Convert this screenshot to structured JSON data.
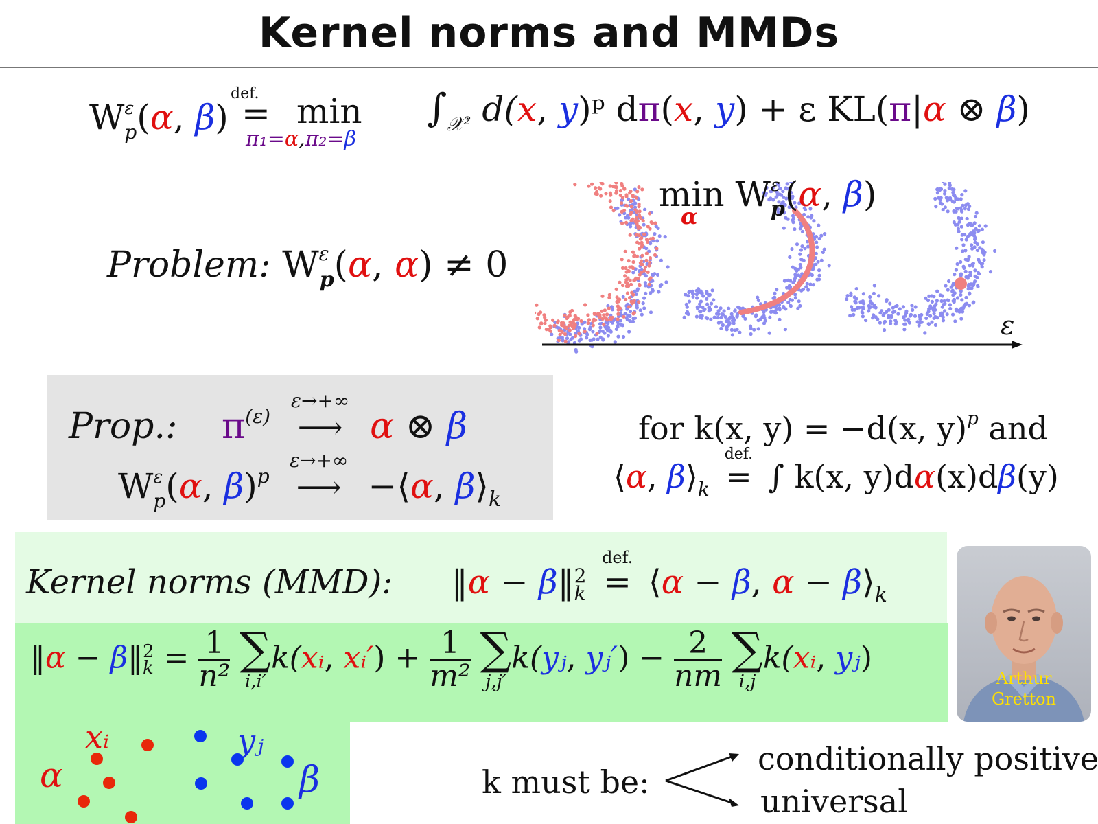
{
  "title": "Kernel norms and MMDs",
  "def_equation": {
    "lhs": "W",
    "lhs_sup": "ε",
    "lhs_sub": "p",
    "open": "(",
    "alpha": "α",
    "comma": ", ",
    "beta": "β",
    "close": ")",
    "def_label": "def.",
    "eq": "=",
    "min_label": "min",
    "constraint_pi1": "π₁=",
    "constraint_alpha": "α",
    "constraint_comma": ",",
    "constraint_pi2": "π₂=",
    "constraint_beta": "β",
    "integral": "∫",
    "integral_sub": "𝒳²",
    "integrand_d": "d(",
    "x": "x",
    "y": "y",
    "integrand_p": ")ᵖ d",
    "pi": "π",
    "plus_eps": " + ε KL(",
    "bar": "|",
    "otimes": " ⊗ "
  },
  "problem": {
    "label": "Problem:",
    "expr_W": "W",
    "expr_sup": "ε",
    "expr_sub": "p",
    "alpha1": "α",
    "alpha2": "α",
    "neq_zero": ") ≠ 0"
  },
  "figure": {
    "min_label": "min W",
    "min_sup": "ε",
    "min_sub": "p",
    "min_sub_alpha": "α",
    "alpha": "α",
    "beta": "β",
    "axis_label": "ε"
  },
  "prop": {
    "label": "Prop.:",
    "pi": "π",
    "pi_sup": "(ε)",
    "arrow_label": "ε→+∞",
    "arrow": "⟶",
    "alpha": "α",
    "otimes": " ⊗ ",
    "beta": "β",
    "line2_W": "W",
    "line2_sup": "ε",
    "line2_sub": "p",
    "line2_pow": "p",
    "neg_open": "−⟨",
    "close_k": "⟩",
    "k": "k"
  },
  "kernel_def": {
    "line1": "for k(x, y) = −d(x, y)",
    "line1_sup": "p",
    "line1_end": " and",
    "open": "⟨",
    "alpha": "α",
    "beta": "β",
    "close": "⟩",
    "k": "k",
    "def_label": "def.",
    "eq": "=",
    "rhs_start": "∫ k(x, y)d",
    "rhs_x": "(x)d",
    "rhs_y": "(y)"
  },
  "mmd": {
    "label": "Kernel norms (MMD):",
    "norm_open": "‖",
    "alpha": "α",
    "minus": " − ",
    "beta": "β",
    "norm_close": "‖",
    "sq": "2",
    "k": "k",
    "def_label": "def.",
    "eq": "=",
    "ip_open": "⟨",
    "ip_close": "⟩"
  },
  "expansion": {
    "eq": " = ",
    "one": "1",
    "two": "2",
    "n2": "n²",
    "m2": "m²",
    "nm": "nm",
    "sigma": "∑",
    "idx1": "i,i′",
    "idx2": "j,j′",
    "idx3": "i,j",
    "k_open": "k(",
    "xi": "xᵢ",
    "xip": "xᵢ′",
    "yj": "yⱼ",
    "yjp": "yⱼ′",
    "comma": ", ",
    "close": ")",
    "plus": " + ",
    "minus": " − "
  },
  "samples": {
    "xi_label": "xᵢ",
    "yj_label": "yⱼ",
    "alpha": "α",
    "beta": "β"
  },
  "requirements": {
    "label": "k must be:",
    "opt1": "conditionally positive",
    "opt2": "universal"
  },
  "portrait": {
    "caption_line1": "Arthur",
    "caption_line2": "Gretton"
  },
  "colors": {
    "alpha": "#e01010",
    "beta": "#1a2fe0",
    "pi": "#6a0a8a",
    "points_alpha": "#f08080",
    "points_beta": "#8c8cf0"
  }
}
